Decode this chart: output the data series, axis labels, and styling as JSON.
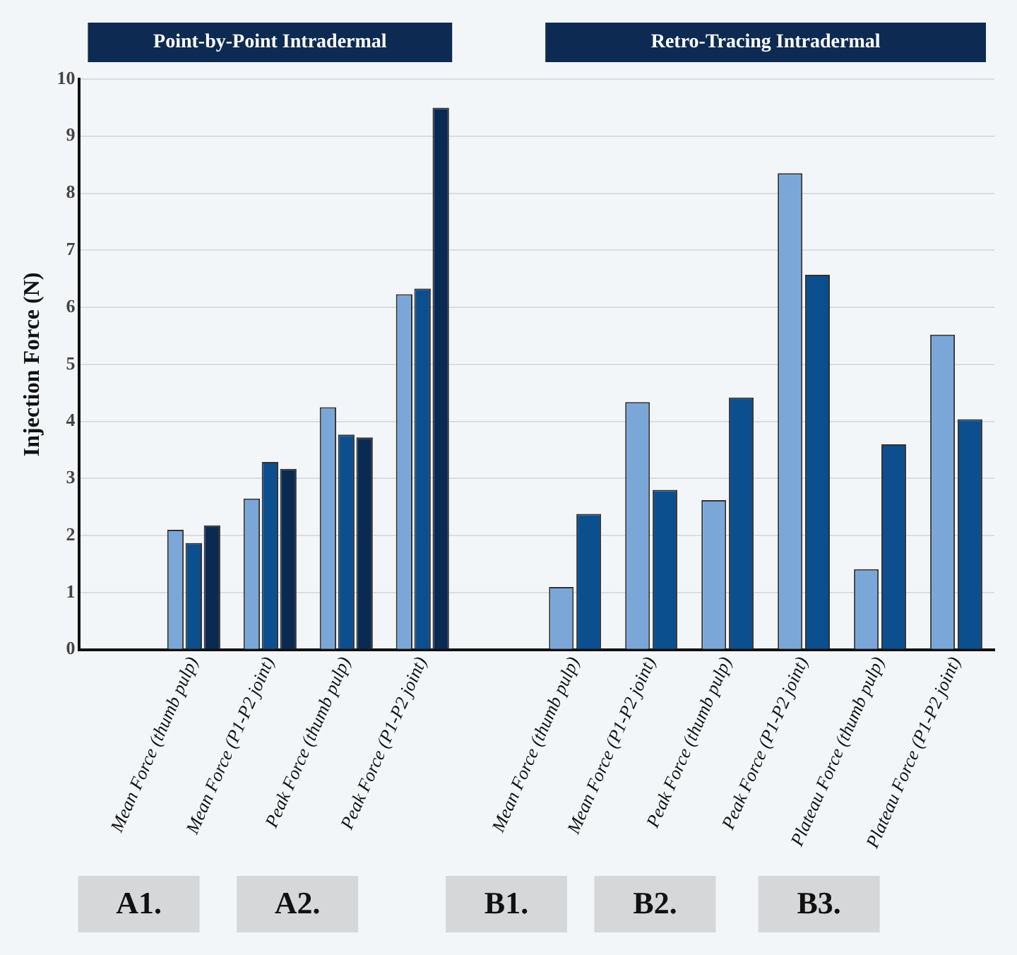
{
  "chart_data": {
    "type": "bar",
    "categories": [
      null,
      "Mean Force (thumb pulp)",
      "Mean Force (P1-P2 joint)",
      "Peak Force (thumb pulp)",
      "Peak Force (P1-P2 joint)",
      null,
      "Mean Force (thumb pulp)",
      "Mean Force (P1-P2 joint)",
      "Peak Force (thumb pulp)",
      "Peak Force (P1-P2 joint)",
      "Plateau Force (thumb pulp)",
      "Plateau Force (P1-P2 joint)"
    ],
    "series": [
      {
        "color": "#7ba7d8",
        "values": [
          null,
          2.1,
          2.65,
          4.25,
          6.23,
          null,
          1.1,
          4.34,
          2.62,
          8.35,
          1.41,
          5.52
        ]
      },
      {
        "color": "#0b4f8f",
        "values": [
          null,
          1.87,
          3.29,
          3.77,
          6.33,
          null,
          2.38,
          2.8,
          4.42,
          6.57,
          3.6,
          4.04
        ]
      },
      {
        "color": "#0b2a52",
        "values": [
          null,
          2.18,
          3.17,
          3.72,
          9.5,
          null,
          null,
          null,
          null,
          null,
          null,
          null
        ]
      }
    ],
    "ylabel": "Injection Force (N)",
    "ylim": [
      0,
      10
    ],
    "yticks": [
      0,
      1,
      2,
      3,
      4,
      5,
      6,
      7,
      8,
      9,
      10
    ],
    "grid": "y",
    "legend": false,
    "annotations": [
      "Point-by-Point Intradermal",
      "Retro-Tracing Intradermal",
      "A1.",
      "A2.",
      "B1.",
      "B2.",
      "B3."
    ]
  }
}
